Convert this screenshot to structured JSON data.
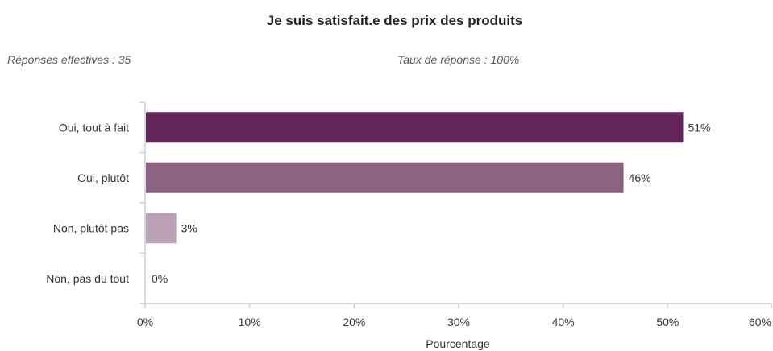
{
  "chart_data": {
    "type": "bar",
    "orientation": "horizontal",
    "title": "Je suis satisfait.e des prix des produits",
    "subtitle_left": "Réponses effectives : 35",
    "subtitle_right": "Taux de réponse : 100%",
    "categories": [
      "Oui, tout à fait",
      "Oui, plutôt",
      "Non, plutôt pas",
      "Non, pas du tout"
    ],
    "values": [
      51.4,
      45.7,
      2.9,
      0
    ],
    "value_labels": [
      "51%",
      "46%",
      "3%",
      "0%"
    ],
    "colors": [
      "#632457",
      "#8c6383",
      "#bba1b6",
      "#dccdd8"
    ],
    "xlabel": "Pourcentage",
    "ylabel": "",
    "xlim": [
      0,
      60
    ],
    "xticks": [
      0,
      10,
      20,
      30,
      40,
      50,
      60
    ],
    "xtick_labels": [
      "0%",
      "10%",
      "20%",
      "30%",
      "40%",
      "50%",
      "60%"
    ],
    "grid": false,
    "legend": "none"
  }
}
